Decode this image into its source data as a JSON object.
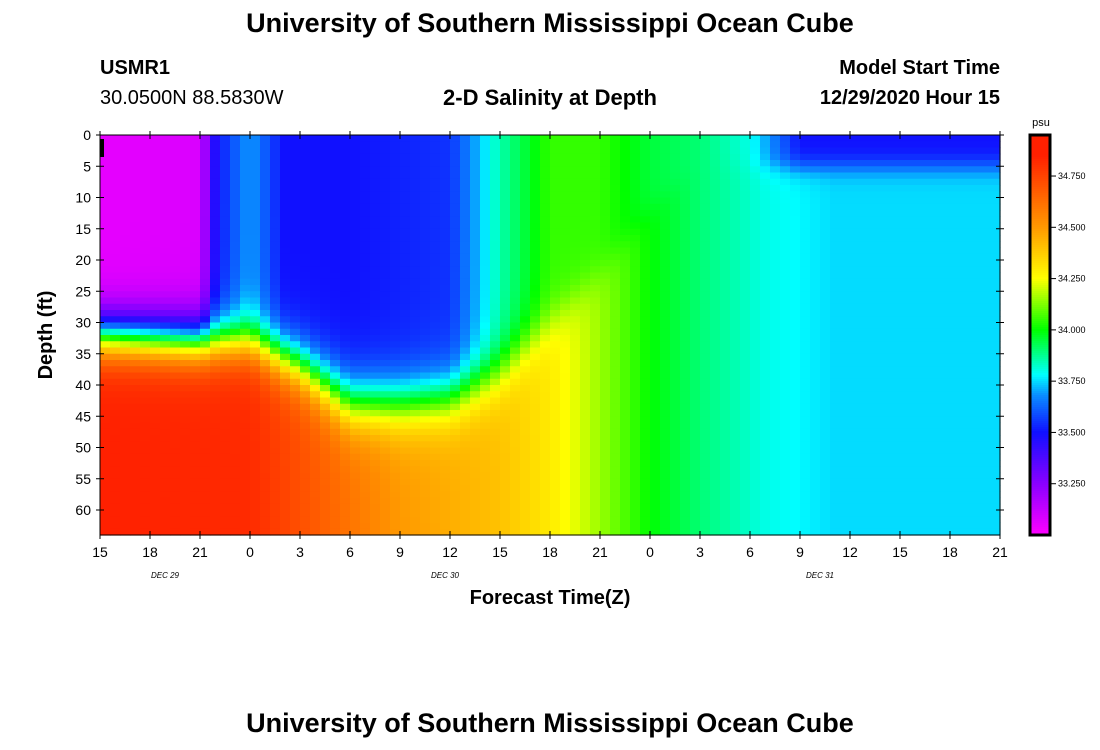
{
  "header": {
    "title": "University of Southern Mississippi Ocean Cube",
    "footer_title": "University of Southern Mississippi Ocean Cube",
    "station": "USMR1",
    "location": "30.0500N 88.5830W",
    "plot_title": "2-D Salinity at Depth",
    "model_label": "Model Start Time",
    "model_time": "12/29/2020 Hour 15"
  },
  "chart_data": {
    "type": "heatmap",
    "title": "2-D Salinity at Depth",
    "xlabel": "Forecast Time(Z)",
    "ylabel": "Depth (ft)",
    "colorbar_unit": "psu",
    "x_tick_labels": [
      "15",
      "18",
      "21",
      "0",
      "3",
      "6",
      "9",
      "12",
      "15",
      "18",
      "21",
      "0",
      "3",
      "6",
      "9",
      "12",
      "15",
      "18",
      "21"
    ],
    "date_labels": [
      {
        "label": "DEC 29",
        "tick_index": 1.3
      },
      {
        "label": "DEC 30",
        "tick_index": 6.9
      },
      {
        "label": "DEC 31",
        "tick_index": 14.4
      }
    ],
    "y_ticks": [
      0,
      5,
      10,
      15,
      20,
      25,
      30,
      35,
      40,
      45,
      50,
      55,
      60
    ],
    "ylim": [
      0,
      64
    ],
    "x_range_hours": [
      0,
      54
    ],
    "colorbar_ticks": [
      "33.250",
      "33.500",
      "33.750",
      "34.000",
      "34.250",
      "34.500",
      "34.750"
    ],
    "colorbar_range": [
      33.0,
      34.95
    ],
    "colormap": [
      "#ff00ff",
      "#8a00ff",
      "#1010ff",
      "#0a8cff",
      "#00ffff",
      "#00ff00",
      "#ffff00",
      "#ff9900",
      "#ff2000"
    ],
    "colormap_stops": [
      33.0,
      33.25,
      33.5,
      33.68,
      33.78,
      34.0,
      34.25,
      34.5,
      34.85
    ],
    "surface_salinity_timeseries": {
      "hours_from_start": [
        0,
        6,
        7,
        9,
        11,
        15,
        21,
        24,
        27,
        30,
        33,
        36,
        39,
        42,
        45,
        48,
        51,
        54
      ],
      "values": [
        33.05,
        33.08,
        33.5,
        33.7,
        33.5,
        33.5,
        33.55,
        33.85,
        34.05,
        34.05,
        33.95,
        33.9,
        33.8,
        33.5,
        33.5,
        33.5,
        33.5,
        33.5
      ]
    },
    "halocline_depth_ft": {
      "hours_from_start": [
        0,
        6,
        9,
        12,
        15,
        18,
        21,
        24,
        27,
        30,
        33,
        36,
        39,
        42,
        45,
        48,
        51,
        54
      ],
      "values": [
        32,
        33,
        33,
        37,
        43,
        43,
        42,
        38,
        30,
        22,
        12,
        5,
        5,
        5,
        5,
        5,
        5,
        5
      ]
    },
    "bottom_salinity_timeseries": {
      "hours_from_start": [
        0,
        9,
        18,
        24,
        27,
        30,
        33,
        36,
        40,
        44,
        48,
        54
      ],
      "values": [
        34.85,
        34.82,
        34.5,
        34.4,
        34.3,
        34.15,
        34.0,
        33.9,
        33.8,
        33.75,
        33.75,
        33.75
      ]
    }
  }
}
